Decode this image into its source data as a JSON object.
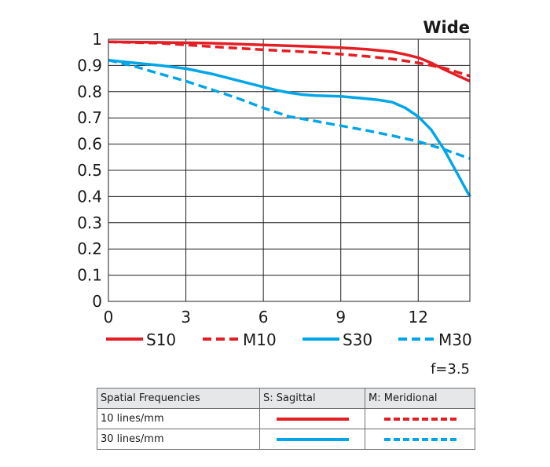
{
  "chart_data": {
    "type": "line",
    "title": "Wide",
    "xlabel": "",
    "ylabel": "",
    "xlim": [
      0,
      14
    ],
    "ylim": [
      0,
      1
    ],
    "x_ticks": [
      "0",
      "3",
      "6",
      "9",
      "12"
    ],
    "y_ticks": [
      "0",
      "0.1",
      "0.2",
      "0.3",
      "0.4",
      "0.5",
      "0.6",
      "0.7",
      "0.8",
      "0.9",
      "1"
    ],
    "grid": true,
    "legend_position": "bottom",
    "series": [
      {
        "name": "S10",
        "color": "#e31e24",
        "style": "solid",
        "x": [
          0,
          2,
          4,
          6,
          8,
          9,
          10,
          11,
          11.5,
          12,
          12.5,
          13,
          13.5,
          14
        ],
        "y": [
          0.99,
          0.988,
          0.985,
          0.978,
          0.972,
          0.968,
          0.962,
          0.952,
          0.942,
          0.93,
          0.91,
          0.885,
          0.862,
          0.84
        ]
      },
      {
        "name": "M10",
        "color": "#e31e24",
        "style": "dashed",
        "x": [
          0,
          2,
          4,
          6,
          8,
          9,
          10,
          11,
          12,
          13,
          13.5,
          14
        ],
        "y": [
          0.99,
          0.985,
          0.972,
          0.96,
          0.95,
          0.943,
          0.935,
          0.925,
          0.91,
          0.89,
          0.875,
          0.86
        ]
      },
      {
        "name": "S30",
        "color": "#00a6e8",
        "style": "solid",
        "x": [
          0,
          1,
          2,
          3,
          4,
          5,
          6,
          6.5,
          7,
          7.5,
          8,
          9,
          10,
          10.5,
          11,
          11.5,
          12,
          12.5,
          13,
          13.5,
          14
        ],
        "y": [
          0.92,
          0.91,
          0.9,
          0.888,
          0.868,
          0.843,
          0.818,
          0.806,
          0.796,
          0.789,
          0.785,
          0.782,
          0.773,
          0.768,
          0.76,
          0.738,
          0.705,
          0.655,
          0.58,
          0.49,
          0.4
        ]
      },
      {
        "name": "M30",
        "color": "#00a6e8",
        "style": "dashed",
        "x": [
          0,
          1,
          2,
          3,
          4,
          5,
          6,
          7,
          8,
          9,
          10,
          11,
          12,
          13,
          14
        ],
        "y": [
          0.92,
          0.897,
          0.868,
          0.84,
          0.808,
          0.775,
          0.738,
          0.705,
          0.688,
          0.67,
          0.652,
          0.632,
          0.61,
          0.58,
          0.545
        ]
      }
    ],
    "annotations": [
      "f=3.5"
    ]
  },
  "table": {
    "headers": [
      "Spatial Frequencies",
      "S: Sagittal",
      "M: Meridional"
    ],
    "rows": [
      {
        "label": "10 lines/mm",
        "color": "#e31e24"
      },
      {
        "label": "30 lines/mm",
        "color": "#00a6e8"
      }
    ]
  }
}
